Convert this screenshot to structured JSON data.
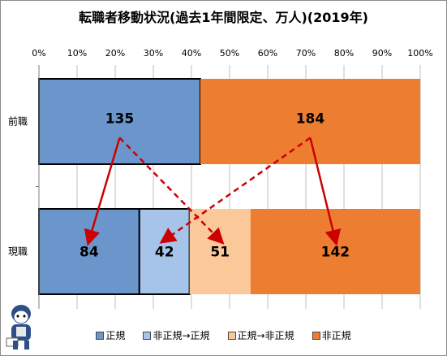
{
  "chart_data": {
    "type": "bar",
    "orientation": "horizontal",
    "stacked": "percent",
    "title": "転職者移動状況(過去1年間限定、万人)(2019年)",
    "xlim": [
      0,
      100
    ],
    "x_ticks": [
      "0%",
      "10%",
      "20%",
      "30%",
      "40%",
      "50%",
      "60%",
      "70%",
      "80%",
      "90%",
      "100%"
    ],
    "categories": [
      "前職",
      "現職"
    ],
    "colors": {
      "正規": "#6b96cc",
      "非正規→正規": "#a6c4ea",
      "正規→非正規": "#fbc89a",
      "非正規": "#ed7d31",
      "arrow": "#cc0000"
    },
    "legend_position": "bottom",
    "legend": [
      "正規",
      "非正規→正規",
      "正規→非正規",
      "非正規"
    ],
    "bars": [
      {
        "category": "前職",
        "segments": [
          {
            "series": "正規",
            "value": 135
          },
          {
            "series": "非正規",
            "value": 184
          }
        ]
      },
      {
        "category": "現職",
        "segments": [
          {
            "series": "正規",
            "value": 84
          },
          {
            "series": "非正規→正規",
            "value": 42
          },
          {
            "series": "正規→非正規",
            "value": 51
          },
          {
            "series": "非正規",
            "value": 142
          }
        ]
      }
    ],
    "annotations": [
      {
        "from": "前職:正規",
        "to": "現職:正規",
        "style": "solid"
      },
      {
        "from": "前職:正規",
        "to": "現職:正規→非正規",
        "style": "dashed"
      },
      {
        "from": "前職:非正規",
        "to": "現職:非正規→正規",
        "style": "dashed"
      },
      {
        "from": "前職:非正規",
        "to": "現職:非正規",
        "style": "solid"
      }
    ]
  }
}
